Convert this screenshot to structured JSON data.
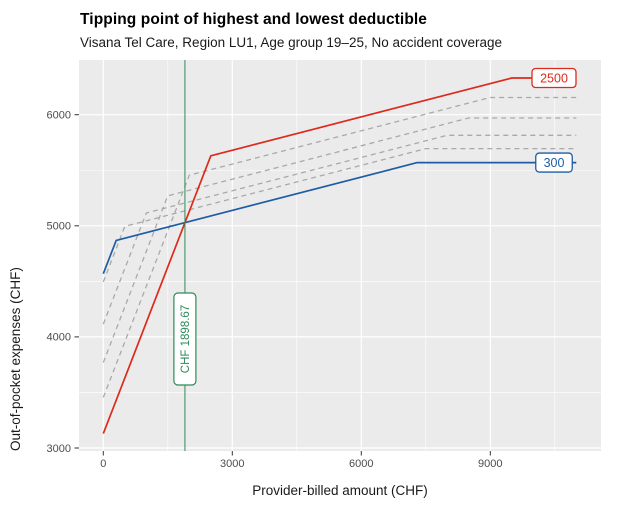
{
  "header": {
    "title": "Tipping point of highest and lowest deductible",
    "subtitle": "Visana Tel Care, Region LU1, Age group 19–25, No accident coverage"
  },
  "chart_data": {
    "type": "line",
    "title": "Tipping point of highest and lowest deductible",
    "subtitle": "Visana Tel Care, Region LU1, Age group 19–25, No accident coverage",
    "xlabel": "Provider-billed amount (CHF)",
    "ylabel": "Out-of-pocket expenses (CHF)",
    "xlim": [
      0,
      11000
    ],
    "ylim": [
      3130,
      6330
    ],
    "x_major_ticks": [
      0,
      3000,
      6000,
      9000
    ],
    "x_minor_ticks": [
      1500,
      4500,
      7500,
      10500
    ],
    "y_major_ticks": [
      3000,
      4000,
      5000,
      6000
    ],
    "y_minor_ticks": [
      3500,
      4500,
      5500
    ],
    "grid": "on",
    "legend": "direct labels at right end of lines",
    "series": [
      {
        "name": "deductible-500",
        "label": "",
        "style": "dashed",
        "color": "#a9a9a9",
        "points": [
          [
            0,
            4495
          ],
          [
            500,
            4995
          ],
          [
            7500,
            5695
          ],
          [
            11000,
            5695
          ]
        ]
      },
      {
        "name": "deductible-1000",
        "label": "",
        "style": "dashed",
        "color": "#a9a9a9",
        "points": [
          [
            0,
            4115
          ],
          [
            1000,
            5115
          ],
          [
            8000,
            5815
          ],
          [
            11000,
            5815
          ]
        ]
      },
      {
        "name": "deductible-1500",
        "label": "",
        "style": "dashed",
        "color": "#a9a9a9",
        "points": [
          [
            0,
            3770
          ],
          [
            1500,
            5270
          ],
          [
            8500,
            5970
          ],
          [
            11000,
            5970
          ]
        ]
      },
      {
        "name": "deductible-2000",
        "label": "",
        "style": "dashed",
        "color": "#a9a9a9",
        "points": [
          [
            0,
            3455
          ],
          [
            2000,
            5455
          ],
          [
            9000,
            6155
          ],
          [
            11000,
            6155
          ]
        ]
      },
      {
        "name": "deductible-300",
        "label": "300",
        "style": "solid",
        "color": "#1e5da6",
        "points": [
          [
            0,
            4569
          ],
          [
            300,
            4869
          ],
          [
            7300,
            5569
          ],
          [
            11000,
            5569
          ]
        ]
      },
      {
        "name": "deductible-2500",
        "label": "2500",
        "style": "solid",
        "color": "#dc2b1c",
        "points": [
          [
            0,
            3130
          ],
          [
            2500,
            5630
          ],
          [
            9500,
            6330
          ],
          [
            11000,
            6330
          ]
        ]
      }
    ],
    "tipping_point": {
      "x": 1898.67,
      "label": "CHF 1898.67",
      "color": "#2e8b57"
    }
  },
  "colors": {
    "panel_bg": "#ebebeb",
    "grid": "#ffffff",
    "tick_text": "#4d4d4d",
    "tick_mark": "#333333",
    "axis_text": "#1a1a1a",
    "red": "#dc2b1c",
    "blue": "#1e5da6",
    "green": "#2e8b57",
    "dashed_gray": "#a9a9a9"
  }
}
